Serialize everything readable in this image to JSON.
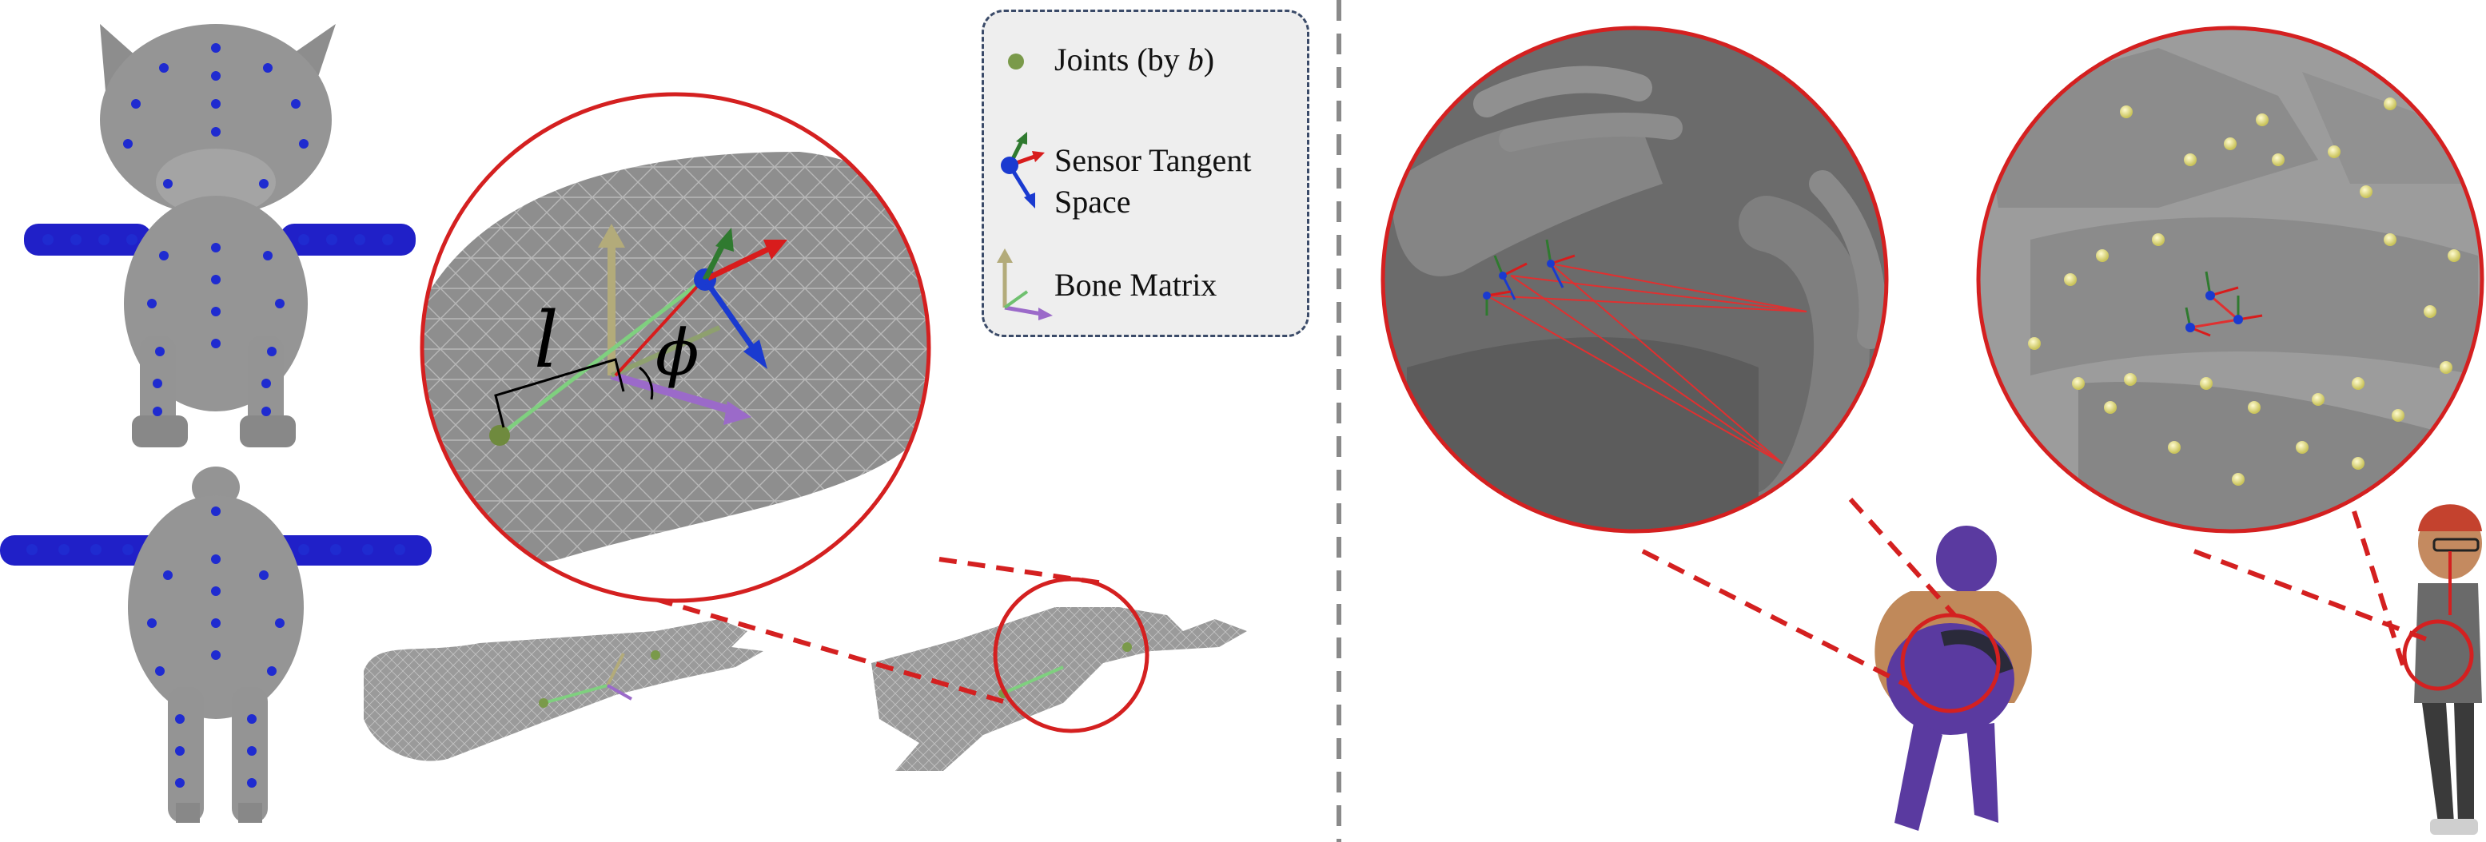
{
  "legend": {
    "joints": "Joints (by b)",
    "joints_prefix": "Joints (by ",
    "joints_var": "b",
    "joints_suffix": ")",
    "sensor_line1": "Sensor Tangent",
    "sensor_line2": "Space",
    "bone_matrix": "Bone Matrix"
  },
  "symbols": {
    "length": "l",
    "angle": "ϕ"
  },
  "colors": {
    "zoom_circle": "#d42020",
    "divider": "#8a8a8a",
    "sensor_joint": "#2a3fbf",
    "joint_dot": "#7a9a4a",
    "yellow_joint": "#e6e08a",
    "tangent_red": "#d81c1c",
    "tangent_green": "#2f7a2f",
    "tangent_blue": "#1a3ad0",
    "bone_tan": "#b3ab7a",
    "bone_purple": "#9b6ac9"
  }
}
